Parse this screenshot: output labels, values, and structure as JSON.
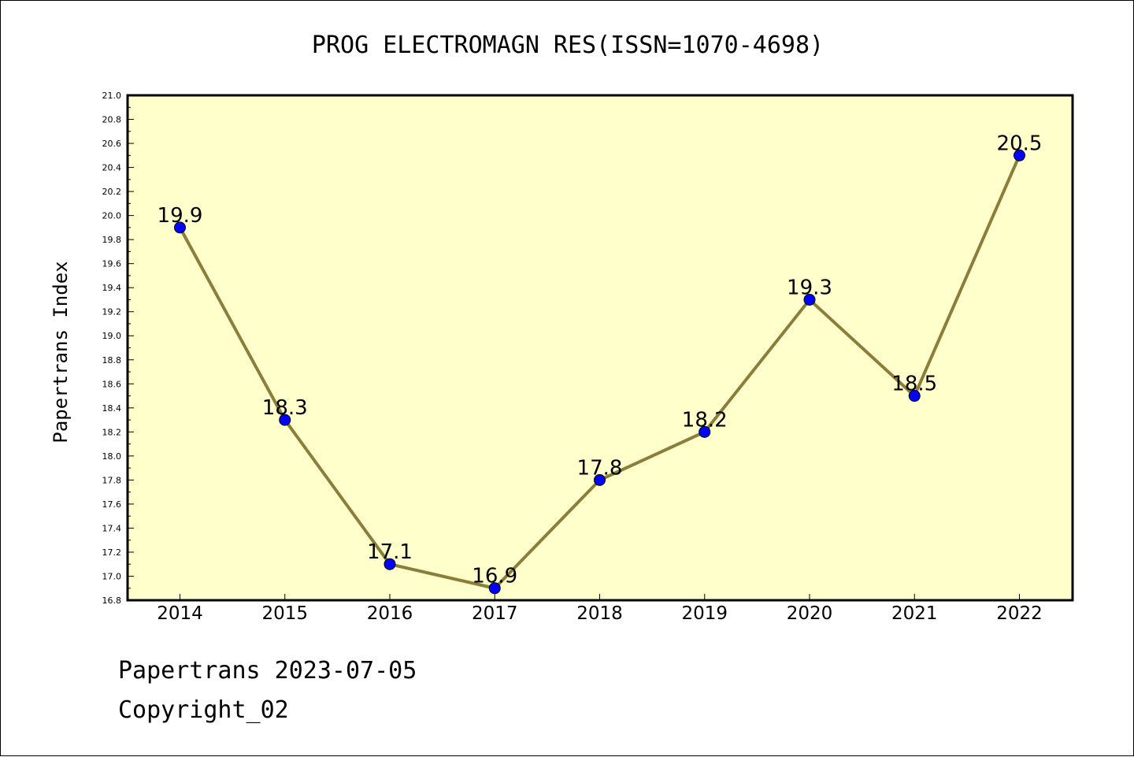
{
  "chart_data": {
    "type": "line",
    "title": "PROG ELECTROMAGN RES(ISSN=1070-4698)",
    "xlabel": "",
    "ylabel": "Papertrans Index",
    "categories": [
      "2014",
      "2015",
      "2016",
      "2017",
      "2018",
      "2019",
      "2020",
      "2021",
      "2022"
    ],
    "values": [
      19.9,
      18.3,
      17.1,
      16.9,
      17.8,
      18.2,
      19.3,
      18.5,
      20.5
    ],
    "data_labels": [
      "19.9",
      "18.3",
      "17.1",
      "16.9",
      "17.8",
      "18.2",
      "19.3",
      "18.5",
      "20.5"
    ],
    "ylim": [
      16.8,
      21.0
    ],
    "ytick_step": 0.2,
    "ytick_labels": [
      "16.8",
      "17.0",
      "17.2",
      "17.4",
      "17.6",
      "17.8",
      "18.0",
      "18.2",
      "18.4",
      "18.6",
      "18.8",
      "19.0",
      "19.2",
      "19.4",
      "19.6",
      "19.8",
      "20.0",
      "20.2",
      "20.4",
      "20.6",
      "20.8",
      "21.0"
    ],
    "grid": false,
    "legend": "none",
    "colors": {
      "plot_background": "#ffffcc",
      "line": "#8b7d3a",
      "marker": "#0000ff",
      "axes": "#000000"
    }
  },
  "footer": {
    "date_text": "Papertrans 2023-07-05",
    "copyright_text": "Copyright_02"
  }
}
